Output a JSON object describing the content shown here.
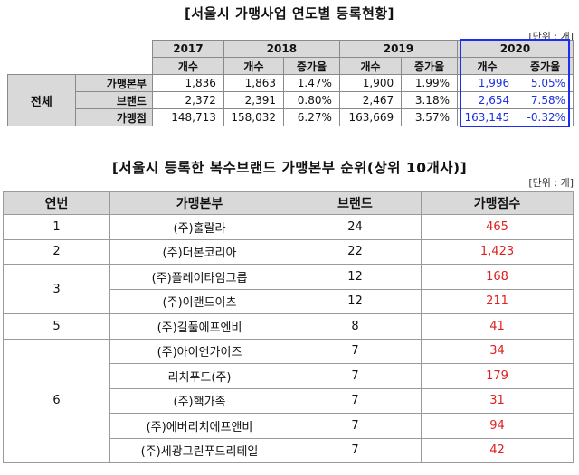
{
  "table1": {
    "title": "[서울시 가맹사업 연도별 등록현황]",
    "unit": "[단위 : 개]",
    "group_label": "전체",
    "years": [
      "2017",
      "2018",
      "2019",
      "2020"
    ],
    "col_count": "개수",
    "col_growth": "증가율",
    "rows": [
      {
        "label": "가맹본부",
        "c2017": "1,836",
        "c2018": "1,863",
        "g2018": "1.47%",
        "c2019": "1,900",
        "g2019": "1.99%",
        "c2020": "1,996",
        "g2020": "5.05%"
      },
      {
        "label": "브랜드",
        "c2017": "2,372",
        "c2018": "2,391",
        "g2018": "0.80%",
        "c2019": "2,467",
        "g2019": "3.18%",
        "c2020": "2,654",
        "g2020": "7.58%"
      },
      {
        "label": "가맹점",
        "c2017": "148,713",
        "c2018": "158,032",
        "g2018": "6.27%",
        "c2019": "163,669",
        "g2019": "3.57%",
        "c2020": "163,145",
        "g2020": "-0.32%"
      }
    ],
    "highlight_color": "#1e2bf0"
  },
  "table2": {
    "title": "[서울시 등록한 복수브랜드 가맹본부 순위(상위 10개사)]",
    "unit": "[단위 : 개]",
    "headers": {
      "rank": "연번",
      "hq": "가맹본부",
      "brand": "브랜드",
      "stores": "가맹점수"
    },
    "rows": [
      {
        "rank": "1",
        "hq": "(주)훌랄라",
        "brand": "24",
        "stores": "465"
      },
      {
        "rank": "2",
        "hq": "(주)더본코리아",
        "brand": "22",
        "stores": "1,423"
      },
      {
        "rank": "3",
        "hq": "(주)플레이타임그룹",
        "brand": "12",
        "stores": "168"
      },
      {
        "rank": "",
        "hq": "(주)이랜드이츠",
        "brand": "12",
        "stores": "211"
      },
      {
        "rank": "5",
        "hq": "(주)길풀에프엔비",
        "brand": "8",
        "stores": "41"
      },
      {
        "rank": "6",
        "hq": "(주)아이언가이즈",
        "brand": "7",
        "stores": "34"
      },
      {
        "rank": "",
        "hq": "리치푸드(주)",
        "brand": "7",
        "stores": "179"
      },
      {
        "rank": "",
        "hq": "(주)핵가족",
        "brand": "7",
        "stores": "31"
      },
      {
        "rank": "",
        "hq": "(주)에버리치에프앤비",
        "brand": "7",
        "stores": "94"
      },
      {
        "rank": "",
        "hq": "(주)세광그린푸드리테일",
        "brand": "7",
        "stores": "42"
      }
    ],
    "store_count_color": "#e02020"
  }
}
